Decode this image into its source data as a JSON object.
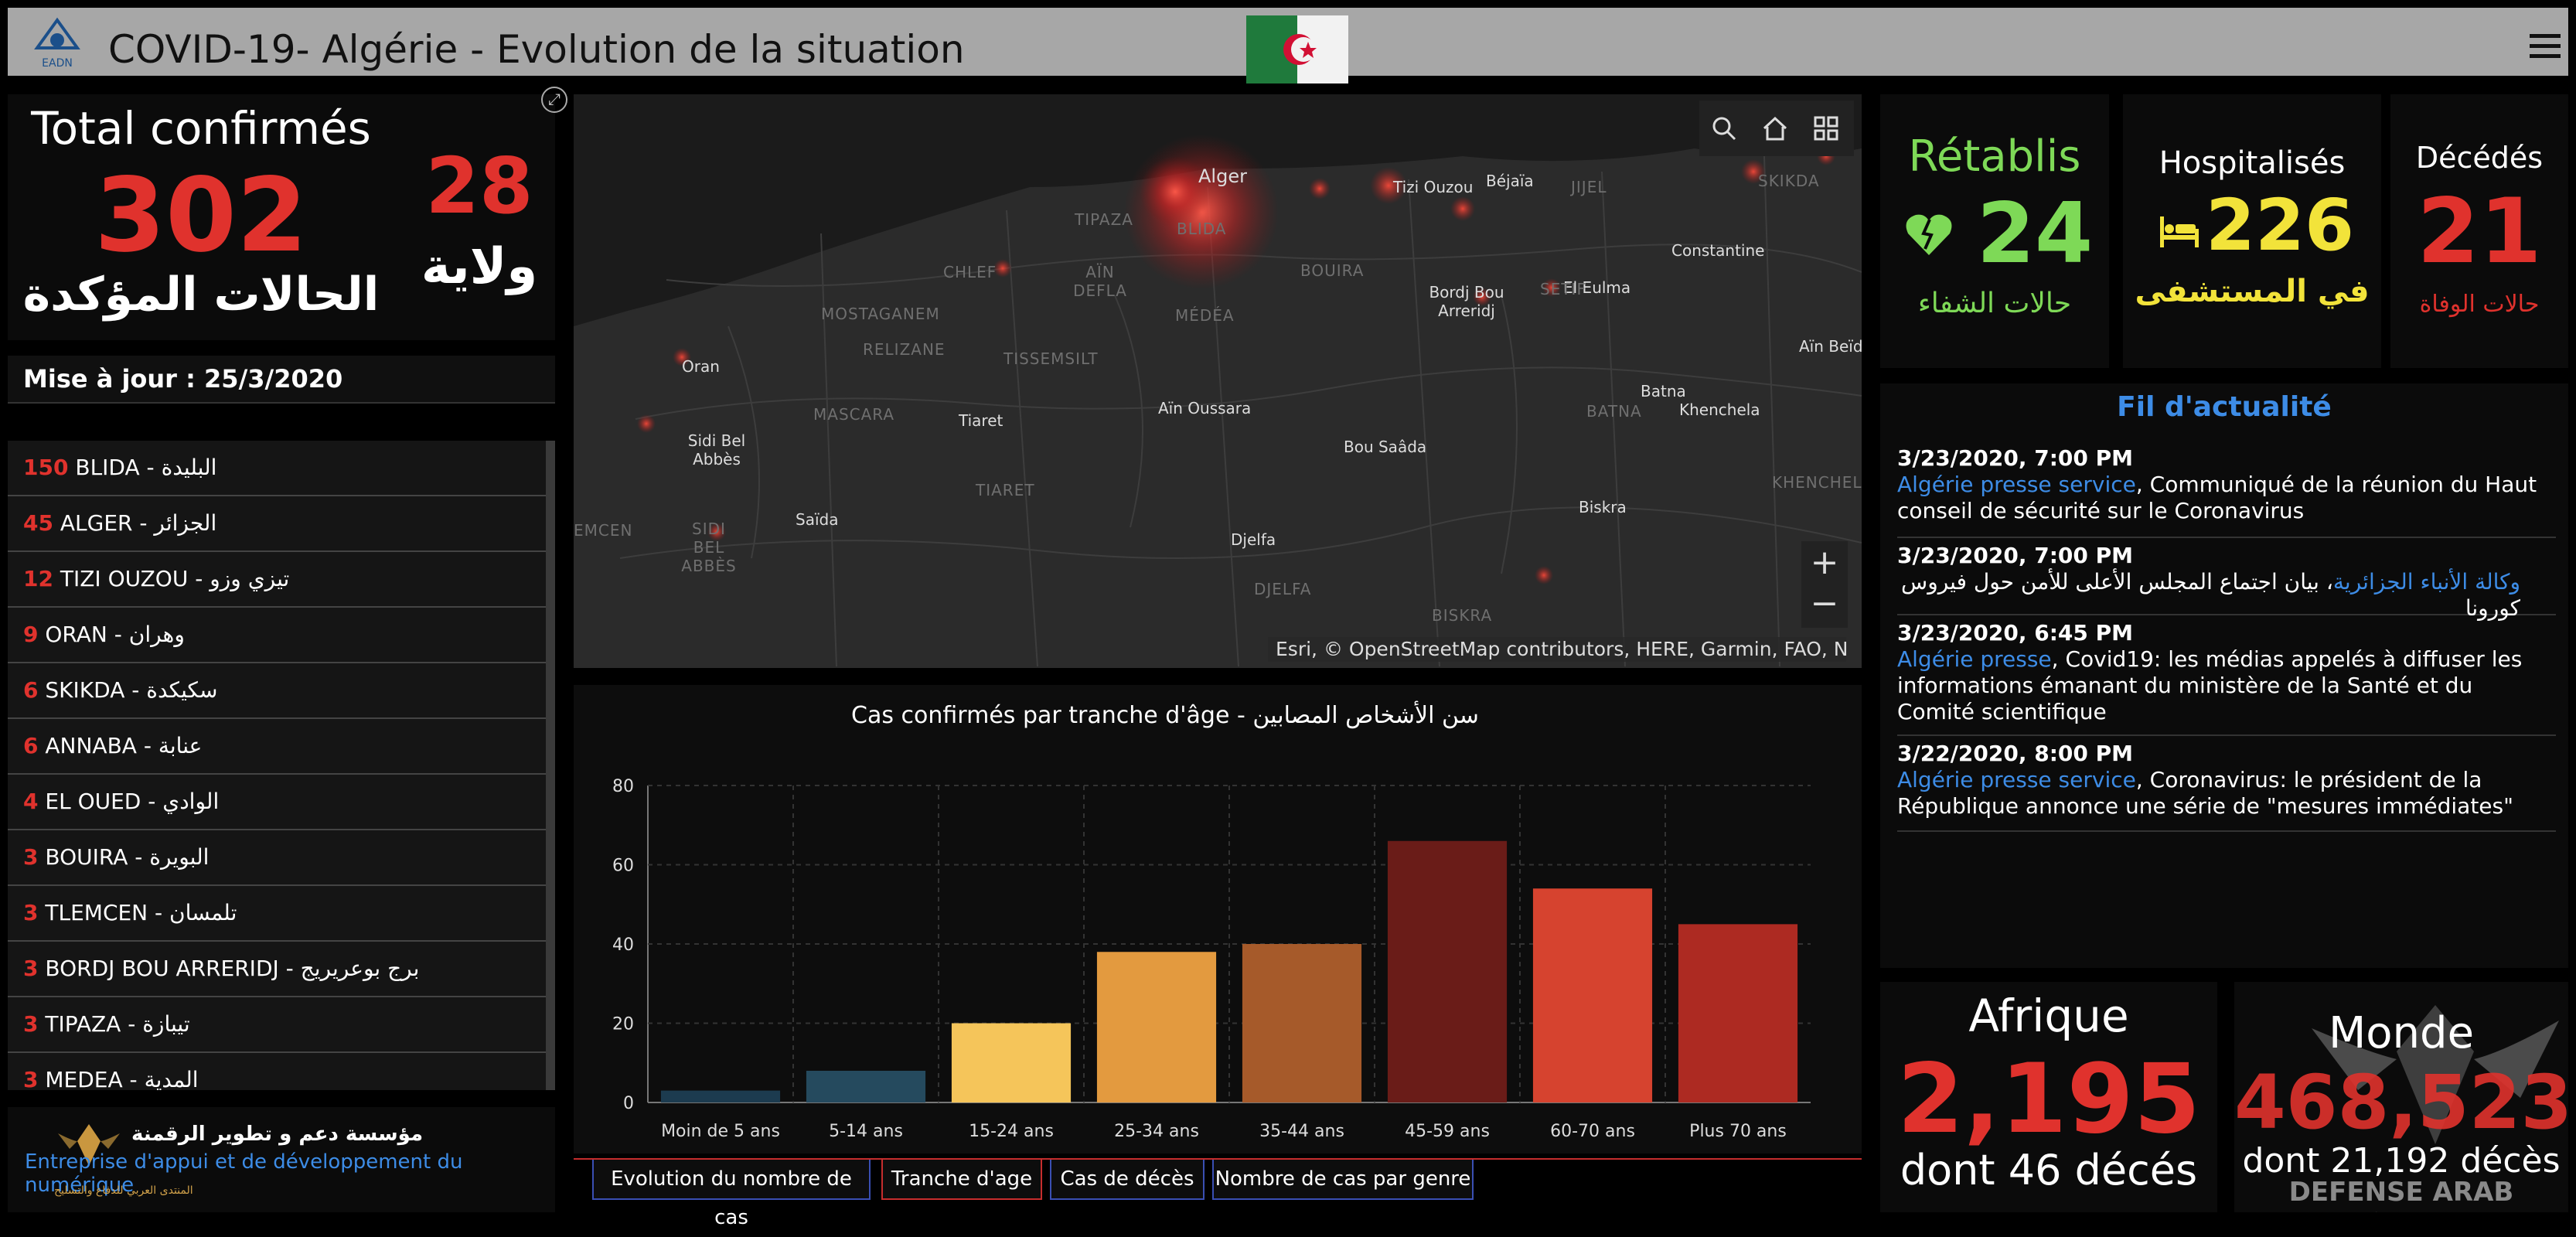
{
  "header": {
    "title": "COVID-19- Algérie - Evolution de la situation",
    "logo_text": "EADN",
    "menu_icon": "hamburger-icon"
  },
  "totals": {
    "label": "Total confirmés",
    "value": "302",
    "arabic_label": "الحالات المؤكدة",
    "wilaya_count": "28",
    "wilaya_label": "ولاية"
  },
  "update": {
    "text": "Mise à jour : 25/3/2020"
  },
  "wilayas": [
    {
      "count": "150",
      "name": "BLIDA -  البليدة"
    },
    {
      "count": "45",
      "name": "ALGER - الجزائر"
    },
    {
      "count": "12",
      "name": "TIZI OUZOU -  تيزي وزو"
    },
    {
      "count": "9",
      "name": "ORAN - وهران"
    },
    {
      "count": "6",
      "name": "SKIKDA -  سكيكدة"
    },
    {
      "count": "6",
      "name": "ANNABA - عنابة"
    },
    {
      "count": "4",
      "name": "EL OUED - الوادي"
    },
    {
      "count": "3",
      "name": "BOUIRA -  البويرة"
    },
    {
      "count": "3",
      "name": "TLEMCEN -  تلمسان"
    },
    {
      "count": "3",
      "name": "BORDJ BOU ARRERIDJ -  برج بوعريريج"
    },
    {
      "count": "3",
      "name": "TIPAZA -  تيبازة"
    },
    {
      "count": "3",
      "name": "MEDEA - المدية"
    }
  ],
  "footer": {
    "arabic": "مؤسسة دعم و تطوير الرقمنة",
    "french": "Entreprise d'appui et de développement du numérique",
    "small": "المنتدى العربي للدفاع والتسليح"
  },
  "map": {
    "credit": "Esri, © OpenStreetMap contributors, HERE, Garmin, FAO, N...",
    "places": [
      {
        "name": "Alger"
      },
      {
        "name": "Tizi Ouzou"
      },
      {
        "name": "Béjaïa"
      },
      {
        "name": "Constantine"
      },
      {
        "name": "El Eulma"
      },
      {
        "name": "Bordj Bou Arreridj"
      },
      {
        "name": "Oran"
      },
      {
        "name": "Sidi Bel Abbès"
      },
      {
        "name": "Tiaret"
      },
      {
        "name": "Aïn Oussara"
      },
      {
        "name": "Saïda"
      },
      {
        "name": "Bou Saâda"
      },
      {
        "name": "Djelfa"
      },
      {
        "name": "Batna"
      },
      {
        "name": "Khenchela"
      },
      {
        "name": "Biskra"
      },
      {
        "name": "Aïn Beïda"
      }
    ],
    "regions": [
      "TIPAZA",
      "BLIDA",
      "CHLEF",
      "AÏN DEFLA",
      "MÉDÉA",
      "BOUIRA",
      "MOSTAGANEM",
      "RELIZANE",
      "TISSEMSILT",
      "MASCARA",
      "TIARET",
      "SIDI BEL ABBÈS",
      "DJELFA",
      "BATNA",
      "KHENCHELA",
      "BISKRA",
      "SETIF",
      "JIJEL",
      "SKIKDA",
      "EMCEN"
    ]
  },
  "chart_data": {
    "type": "bar",
    "title": "Cas confirmés par tranche d'âge - سن الأشخاص المصابين",
    "categories": [
      "Moin de 5 ans",
      "5-14 ans",
      "15-24 ans",
      "25-34 ans",
      "35-44 ans",
      "45-59 ans",
      "60-70 ans",
      "Plus 70 ans"
    ],
    "values": [
      3,
      8,
      20,
      38,
      40,
      66,
      54,
      45
    ],
    "colors": [
      "#1c3b4f",
      "#254a5e",
      "#f5c55a",
      "#e39a3f",
      "#a65a2a",
      "#6a1c18",
      "#d6432f",
      "#ad2a22"
    ],
    "ylim": [
      0,
      80
    ],
    "yticks": [
      0,
      20,
      40,
      60,
      80
    ],
    "grid": true
  },
  "tabs": [
    {
      "label": "Evolution du nombre de cas"
    },
    {
      "label": "Tranche d'age"
    },
    {
      "label": "Cas de décès"
    },
    {
      "label": "Nombre de cas par genre"
    }
  ],
  "stats": {
    "recovered": {
      "label": "Rétablis",
      "value": "24",
      "arabic": "حالات الشفاء",
      "color": "#7ed957"
    },
    "hospitalized": {
      "label": "Hospitalisés",
      "value": "226",
      "arabic": "في المستشفى",
      "color": "#f2e33a"
    },
    "deaths": {
      "label": "Décédés",
      "value": "21",
      "arabic": "حالات الوفاة",
      "color": "#e0322d"
    }
  },
  "news": {
    "title": "Fil d'actualité",
    "items": [
      {
        "date": "3/23/2020, 7:00 PM",
        "source": "Algérie presse service",
        "text": ", Communiqué de la réunion du Haut conseil de sécurité sur le Coronavirus"
      },
      {
        "date": "3/23/2020, 7:00 PM",
        "source": "وكالة الأنباء الجزائرية",
        "text": "، بيان اجتماع المجلس الأعلى للأمن حول فيروس كورونا"
      },
      {
        "date": "3/23/2020, 6:45 PM",
        "source": "Algérie presse",
        "text": ", Covid19: les médias appelés à diffuser les informations émanant du ministère de la Santé et du Comité scientifique"
      },
      {
        "date": "3/22/2020, 8:00 PM",
        "source": "Algérie presse service",
        "text": ", Coronavirus: le président de la République annonce une série de \"mesures immédiates\""
      }
    ]
  },
  "afrique": {
    "label": "Afrique",
    "value": "2,195",
    "sub": "dont 46 décés"
  },
  "monde": {
    "label": "Monde",
    "value": "468,523",
    "sub": "dont 21,192 décès",
    "watermark": "DEFENSE ARAB FORUM"
  }
}
